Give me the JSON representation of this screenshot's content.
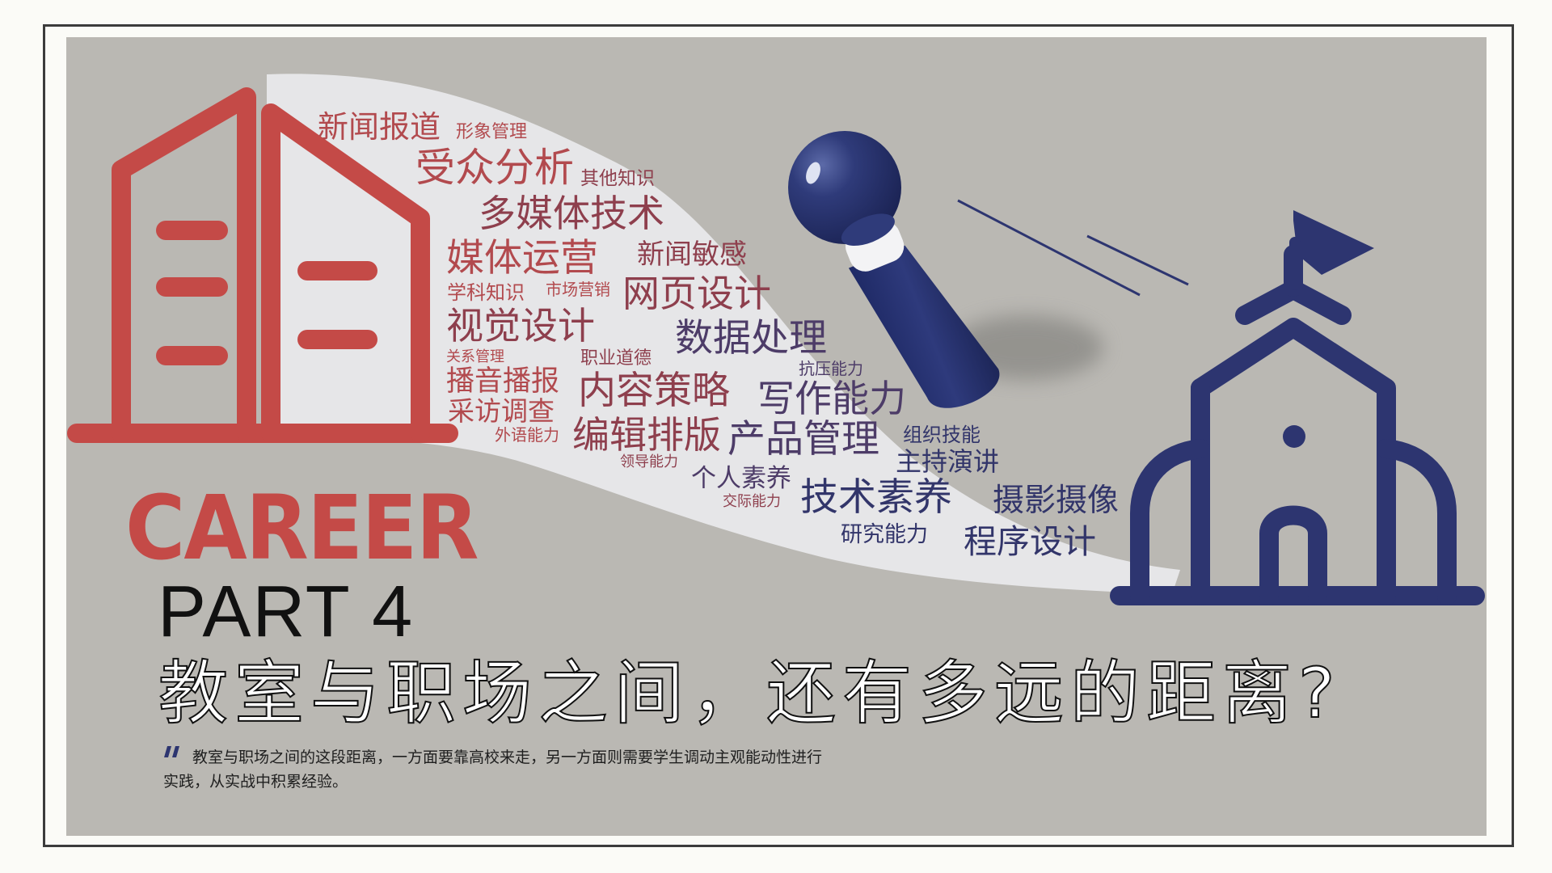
{
  "slide": {
    "career_label": "CAREER",
    "part_label": "PART 4",
    "headline": "教室与职场之间，还有多远的距离?",
    "description": "教室与职场之间的这段距离，一方面要靠高校来走，另一方面则需要学生调动主观能动性进行实践，从实战中积累经验。"
  },
  "word_cloud": [
    "新闻报道",
    "形象管理",
    "受众分析",
    "其他知识",
    "多媒体技术",
    "媒体运营",
    "新闻敏感",
    "学科知识",
    "市场营销",
    "网页设计",
    "视觉设计",
    "数据处理",
    "关系管理",
    "职业道德",
    "抗压能力",
    "播音播报",
    "内容策略",
    "写作能力",
    "采访调查",
    "外语能力",
    "编辑排版",
    "产品管理",
    "组织技能",
    "主持演讲",
    "领导能力",
    "个人素养",
    "交际能力",
    "技术素养",
    "摄影摄像",
    "研究能力",
    "程序设计"
  ],
  "icons": [
    "office-building-icon",
    "telescope-icon",
    "school-building-icon"
  ],
  "colors": {
    "accent_red": "#c44a47",
    "accent_navy": "#2d3570",
    "panel_gray": "#bab8b3",
    "cloud_band": "#e6e6e8"
  }
}
